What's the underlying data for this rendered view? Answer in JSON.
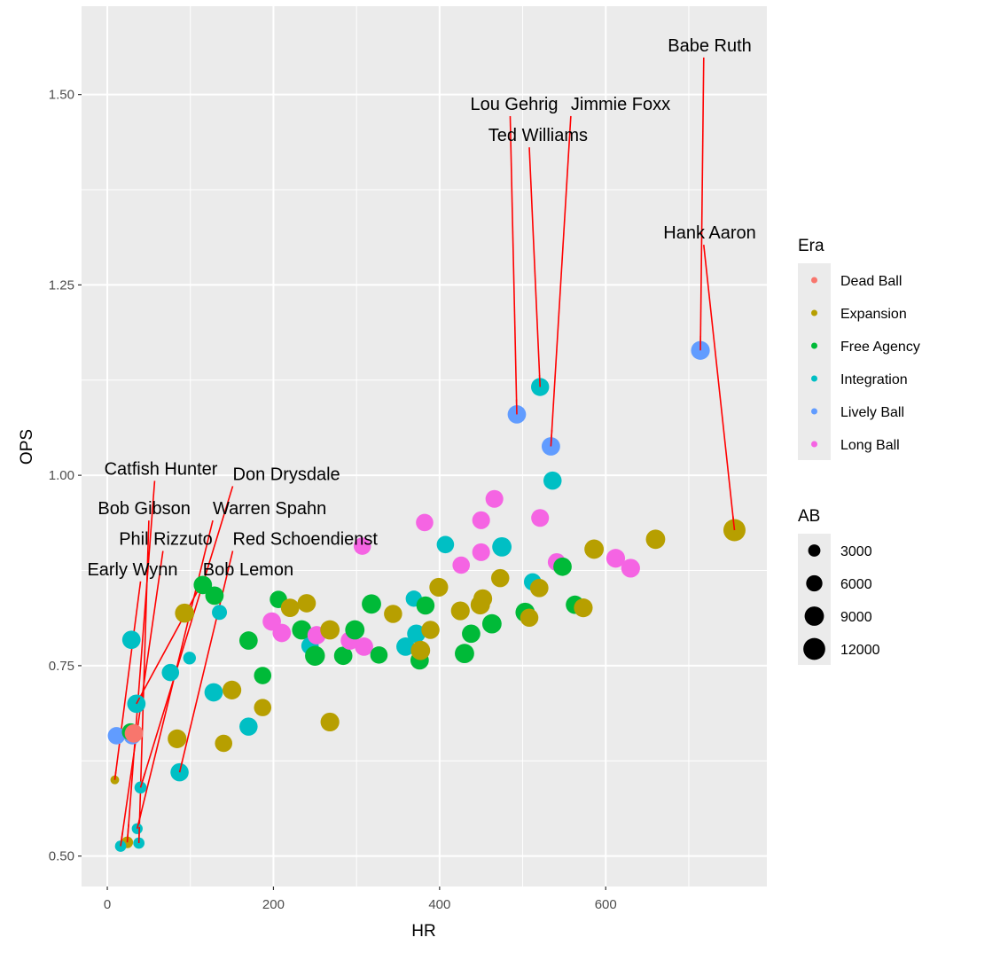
{
  "chart_data": {
    "type": "scatter",
    "title": "",
    "xlabel": "HR",
    "ylabel": "OPS",
    "xlim": [
      -31,
      794
    ],
    "ylim": [
      0.46,
      1.616
    ],
    "x_ticks": [
      0,
      200,
      400,
      600
    ],
    "x_tick_labels": [
      "0",
      "200",
      "400",
      "600"
    ],
    "y_ticks": [
      0.5,
      0.75,
      1.0,
      1.25,
      1.5
    ],
    "y_tick_labels": [
      "0.50",
      "0.75",
      "1.00",
      "1.25",
      "1.50"
    ],
    "x_minor": [
      -100,
      100,
      300,
      500,
      700
    ],
    "y_minor": [
      0.625,
      0.875,
      1.125,
      1.375
    ],
    "grid": true,
    "legend_placement": "right",
    "color_legend": {
      "title": "Era",
      "entries": [
        {
          "label": "Dead Ball",
          "color": "#F8766D"
        },
        {
          "label": "Expansion",
          "color": "#B79F00"
        },
        {
          "label": "Free Agency",
          "color": "#00BA38"
        },
        {
          "label": "Integration",
          "color": "#00BFC4"
        },
        {
          "label": "Lively Ball",
          "color": "#619CFF"
        },
        {
          "label": "Long Ball",
          "color": "#F564E3"
        }
      ]
    },
    "size_legend": {
      "title": "AB",
      "entries": [
        {
          "label": "3000",
          "value": 3000
        },
        {
          "label": "6000",
          "value": 6000
        },
        {
          "label": "9000",
          "value": 9000
        },
        {
          "label": "12000",
          "value": 12000
        }
      ]
    },
    "points": [
      {
        "hr": 714,
        "ops": 1.164,
        "era": "Lively Ball",
        "ab": 8400
      },
      {
        "hr": 493,
        "ops": 1.08,
        "era": "Lively Ball",
        "ab": 8000
      },
      {
        "hr": 534,
        "ops": 1.038,
        "era": "Lively Ball",
        "ab": 8100
      },
      {
        "hr": 521,
        "ops": 1.116,
        "era": "Integration",
        "ab": 7700
      },
      {
        "hr": 536,
        "ops": 0.993,
        "era": "Integration",
        "ab": 7800
      },
      {
        "hr": 755,
        "ops": 0.928,
        "era": "Expansion",
        "ab": 12300
      },
      {
        "hr": 9,
        "ops": 0.6,
        "era": "Expansion",
        "ab": 1200
      },
      {
        "hr": 24,
        "ops": 0.518,
        "era": "Expansion",
        "ab": 2600
      },
      {
        "hr": 16,
        "ops": 0.513,
        "era": "Integration",
        "ab": 2400
      },
      {
        "hr": 38,
        "ops": 0.517,
        "era": "Integration",
        "ab": 2400
      },
      {
        "hr": 36,
        "ops": 0.536,
        "era": "Integration",
        "ab": 2200
      },
      {
        "hr": 40,
        "ops": 0.59,
        "era": "Integration",
        "ab": 2900
      },
      {
        "hr": 87,
        "ops": 0.61,
        "era": "Integration",
        "ab": 7800
      },
      {
        "hr": 11,
        "ops": 0.658,
        "era": "Lively Ball",
        "ab": 7000
      },
      {
        "hr": 30,
        "ops": 0.658,
        "era": "Lively Ball",
        "ab": 7000
      },
      {
        "hr": 28,
        "ops": 0.663,
        "era": "Free Agency",
        "ab": 7000
      },
      {
        "hr": 32,
        "ops": 0.661,
        "era": "Dead Ball",
        "ab": 8000
      },
      {
        "hr": 35,
        "ops": 0.7,
        "era": "Integration",
        "ab": 8000
      },
      {
        "hr": 29,
        "ops": 0.784,
        "era": "Integration",
        "ab": 8000
      },
      {
        "hr": 76,
        "ops": 0.741,
        "era": "Integration",
        "ab": 7000
      },
      {
        "hr": 99,
        "ops": 0.76,
        "era": "Integration",
        "ab": 3300
      },
      {
        "hr": 84,
        "ops": 0.654,
        "era": "Expansion",
        "ab": 8400
      },
      {
        "hr": 93,
        "ops": 0.819,
        "era": "Expansion",
        "ab": 8800
      },
      {
        "hr": 115,
        "ops": 0.856,
        "era": "Free Agency",
        "ab": 8000
      },
      {
        "hr": 129,
        "ops": 0.842,
        "era": "Free Agency",
        "ab": 8000
      },
      {
        "hr": 135,
        "ops": 0.82,
        "era": "Integration",
        "ab": 5000
      },
      {
        "hr": 128,
        "ops": 0.715,
        "era": "Integration",
        "ab": 8000
      },
      {
        "hr": 150,
        "ops": 0.718,
        "era": "Expansion",
        "ab": 8400
      },
      {
        "hr": 140,
        "ops": 0.648,
        "era": "Expansion",
        "ab": 7000
      },
      {
        "hr": 170,
        "ops": 0.67,
        "era": "Integration",
        "ab": 7800
      },
      {
        "hr": 187,
        "ops": 0.695,
        "era": "Expansion",
        "ab": 7000
      },
      {
        "hr": 187,
        "ops": 0.737,
        "era": "Free Agency",
        "ab": 7000
      },
      {
        "hr": 170,
        "ops": 0.783,
        "era": "Free Agency",
        "ab": 8000
      },
      {
        "hr": 206,
        "ops": 0.837,
        "era": "Free Agency",
        "ab": 7000
      },
      {
        "hr": 198,
        "ops": 0.808,
        "era": "Long Ball",
        "ab": 8000
      },
      {
        "hr": 210,
        "ops": 0.793,
        "era": "Long Ball",
        "ab": 8000
      },
      {
        "hr": 220,
        "ops": 0.826,
        "era": "Expansion",
        "ab": 8000
      },
      {
        "hr": 240,
        "ops": 0.832,
        "era": "Expansion",
        "ab": 8000
      },
      {
        "hr": 234,
        "ops": 0.797,
        "era": "Free Agency",
        "ab": 9000
      },
      {
        "hr": 244,
        "ops": 0.776,
        "era": "Integration",
        "ab": 7000
      },
      {
        "hr": 250,
        "ops": 0.763,
        "era": "Free Agency",
        "ab": 9600
      },
      {
        "hr": 252,
        "ops": 0.79,
        "era": "Long Ball",
        "ab": 8000
      },
      {
        "hr": 268,
        "ops": 0.797,
        "era": "Expansion",
        "ab": 9000
      },
      {
        "hr": 268,
        "ops": 0.676,
        "era": "Expansion",
        "ab": 8400
      },
      {
        "hr": 284,
        "ops": 0.763,
        "era": "Free Agency",
        "ab": 8000
      },
      {
        "hr": 292,
        "ops": 0.783,
        "era": "Long Ball",
        "ab": 8000
      },
      {
        "hr": 298,
        "ops": 0.797,
        "era": "Free Agency",
        "ab": 9000
      },
      {
        "hr": 309,
        "ops": 0.775,
        "era": "Long Ball",
        "ab": 8000
      },
      {
        "hr": 307,
        "ops": 0.907,
        "era": "Long Ball",
        "ab": 7000
      },
      {
        "hr": 318,
        "ops": 0.831,
        "era": "Free Agency",
        "ab": 9000
      },
      {
        "hr": 327,
        "ops": 0.764,
        "era": "Free Agency",
        "ab": 7000
      },
      {
        "hr": 344,
        "ops": 0.818,
        "era": "Expansion",
        "ab": 7800
      },
      {
        "hr": 369,
        "ops": 0.838,
        "era": "Integration",
        "ab": 6000
      },
      {
        "hr": 359,
        "ops": 0.775,
        "era": "Integration",
        "ab": 8000
      },
      {
        "hr": 372,
        "ops": 0.792,
        "era": "Integration",
        "ab": 8000
      },
      {
        "hr": 376,
        "ops": 0.757,
        "era": "Free Agency",
        "ab": 8000
      },
      {
        "hr": 377,
        "ops": 0.77,
        "era": "Expansion",
        "ab": 9000
      },
      {
        "hr": 383,
        "ops": 0.829,
        "era": "Free Agency",
        "ab": 7800
      },
      {
        "hr": 389,
        "ops": 0.797,
        "era": "Expansion",
        "ab": 7800
      },
      {
        "hr": 382,
        "ops": 0.938,
        "era": "Long Ball",
        "ab": 7000
      },
      {
        "hr": 399,
        "ops": 0.853,
        "era": "Expansion",
        "ab": 8400
      },
      {
        "hr": 407,
        "ops": 0.909,
        "era": "Integration",
        "ab": 7000
      },
      {
        "hr": 426,
        "ops": 0.882,
        "era": "Long Ball",
        "ab": 7000
      },
      {
        "hr": 425,
        "ops": 0.822,
        "era": "Expansion",
        "ab": 8400
      },
      {
        "hr": 430,
        "ops": 0.766,
        "era": "Free Agency",
        "ab": 9000
      },
      {
        "hr": 438,
        "ops": 0.792,
        "era": "Free Agency",
        "ab": 8000
      },
      {
        "hr": 449,
        "ops": 0.83,
        "era": "Expansion",
        "ab": 9000
      },
      {
        "hr": 452,
        "ops": 0.838,
        "era": "Expansion",
        "ab": 8400
      },
      {
        "hr": 450,
        "ops": 0.899,
        "era": "Long Ball",
        "ab": 7400
      },
      {
        "hr": 450,
        "ops": 0.941,
        "era": "Long Ball",
        "ab": 7400
      },
      {
        "hr": 466,
        "ops": 0.969,
        "era": "Long Ball",
        "ab": 7400
      },
      {
        "hr": 463,
        "ops": 0.805,
        "era": "Free Agency",
        "ab": 9000
      },
      {
        "hr": 475,
        "ops": 0.906,
        "era": "Integration",
        "ab": 9000
      },
      {
        "hr": 473,
        "ops": 0.865,
        "era": "Expansion",
        "ab": 7800
      },
      {
        "hr": 503,
        "ops": 0.82,
        "era": "Free Agency",
        "ab": 9000
      },
      {
        "hr": 508,
        "ops": 0.813,
        "era": "Expansion",
        "ab": 7800
      },
      {
        "hr": 512,
        "ops": 0.86,
        "era": "Integration",
        "ab": 7000
      },
      {
        "hr": 520,
        "ops": 0.852,
        "era": "Expansion",
        "ab": 8000
      },
      {
        "hr": 521,
        "ops": 0.944,
        "era": "Long Ball",
        "ab": 7400
      },
      {
        "hr": 541,
        "ops": 0.886,
        "era": "Long Ball",
        "ab": 7400
      },
      {
        "hr": 548,
        "ops": 0.88,
        "era": "Free Agency",
        "ab": 8000
      },
      {
        "hr": 563,
        "ops": 0.83,
        "era": "Free Agency",
        "ab": 8000
      },
      {
        "hr": 573,
        "ops": 0.826,
        "era": "Expansion",
        "ab": 8400
      },
      {
        "hr": 586,
        "ops": 0.903,
        "era": "Expansion",
        "ab": 9000
      },
      {
        "hr": 612,
        "ops": 0.891,
        "era": "Long Ball",
        "ab": 8400
      },
      {
        "hr": 630,
        "ops": 0.878,
        "era": "Long Ball",
        "ab": 8400
      },
      {
        "hr": 660,
        "ops": 0.916,
        "era": "Expansion",
        "ab": 9000
      }
    ],
    "annotations": [
      {
        "label": "Babe Ruth",
        "label_hr": 714,
        "label_ops": 1.558,
        "hr": 714,
        "ops": 1.164,
        "anchor": "end",
        "lx": 718
      },
      {
        "label": "Hank Aaron",
        "label_hr": 718,
        "label_ops": 1.312,
        "hr": 755,
        "ops": 0.928,
        "anchor": "end",
        "lx": 718
      },
      {
        "label": "Lou Gehrig",
        "label_hr": 485,
        "label_ops": 1.481,
        "hr": 493,
        "ops": 1.08,
        "anchor": "end",
        "lx": 485
      },
      {
        "label": "Jimmie Foxx",
        "label_hr": 558,
        "label_ops": 1.481,
        "hr": 534,
        "ops": 1.038,
        "anchor": "start",
        "lx": 558
      },
      {
        "label": "Ted Williams",
        "label_hr": 508,
        "label_ops": 1.44,
        "hr": 521,
        "ops": 1.116,
        "anchor": "end",
        "lx": 508
      },
      {
        "label": "Catfish Hunter",
        "label_hr": 57,
        "label_ops": 1.002,
        "hr": 24,
        "ops": 0.518,
        "anchor": "end",
        "lx": 57
      },
      {
        "label": "Don Drysdale",
        "label_hr": 151,
        "label_ops": 0.995,
        "hr": 40,
        "ops": 0.59,
        "anchor": "start",
        "lx": 151
      },
      {
        "label": "Bob Gibson",
        "label_hr": 50,
        "label_ops": 0.95,
        "hr": 38,
        "ops": 0.517,
        "anchor": "end",
        "lx": 50
      },
      {
        "label": "Warren Spahn",
        "label_hr": 127,
        "label_ops": 0.95,
        "hr": 36,
        "ops": 0.536,
        "anchor": "start",
        "lx": 127
      },
      {
        "label": "Phil Rizzuto",
        "label_hr": 67,
        "label_ops": 0.91,
        "hr": 16,
        "ops": 0.513,
        "anchor": "end",
        "lx": 67
      },
      {
        "label": "Red Schoendienst",
        "label_hr": 151,
        "label_ops": 0.91,
        "hr": 87,
        "ops": 0.61,
        "anchor": "start",
        "lx": 151
      },
      {
        "label": "Early Wynn",
        "label_hr": 40,
        "label_ops": 0.87,
        "hr": 9,
        "ops": 0.6,
        "anchor": "end",
        "lx": 40
      },
      {
        "label": "Bob Lemon",
        "label_hr": 115,
        "label_ops": 0.87,
        "hr": 35,
        "ops": 0.7,
        "anchor": "start",
        "lx": 115
      }
    ]
  }
}
